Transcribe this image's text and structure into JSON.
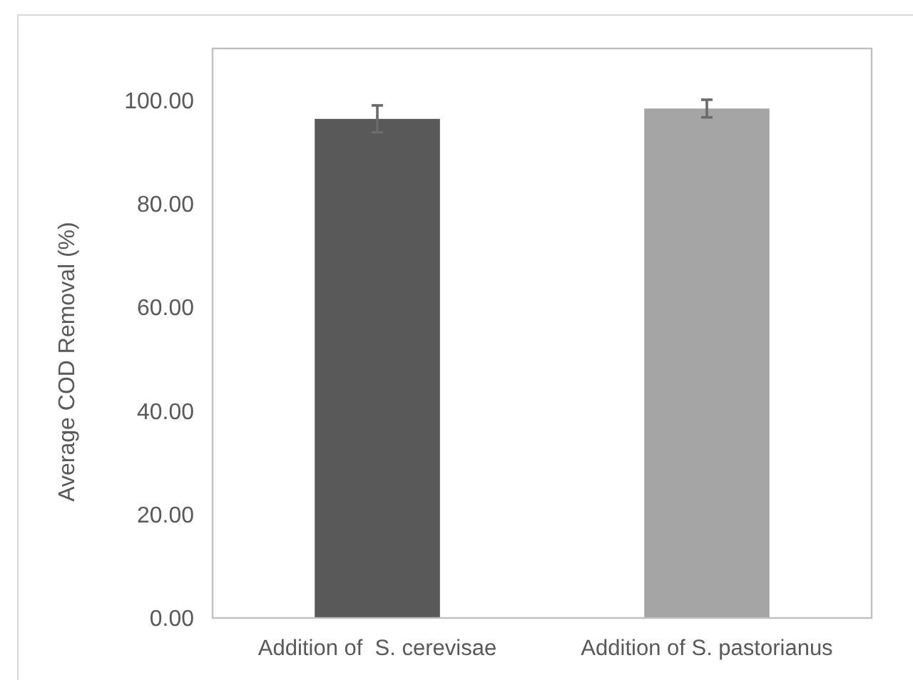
{
  "chart_data": {
    "type": "bar",
    "ylabel": "Average COD Removal (%)",
    "categories": [
      "Addition of  S. cerevisae",
      "Addition of S. pastorianus"
    ],
    "values": [
      96.4,
      98.4
    ],
    "colors": [
      "#595959",
      "#a5a5a5"
    ],
    "errors": [
      2.6,
      1.7
    ],
    "ylim": [
      0,
      110
    ],
    "yticks": [
      {
        "value": 0,
        "label": "0.00"
      },
      {
        "value": 20,
        "label": "20.00"
      },
      {
        "value": 40,
        "label": "40.00"
      },
      {
        "value": 60,
        "label": "60.00"
      },
      {
        "value": 80,
        "label": "80.00"
      },
      {
        "value": 100,
        "label": "100.00"
      }
    ],
    "grid": false
  }
}
